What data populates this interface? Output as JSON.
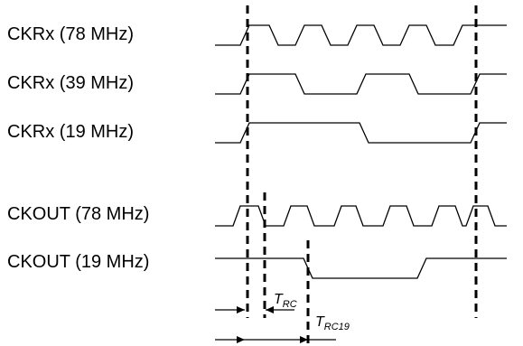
{
  "signals": [
    {
      "label": "CKRx (78 MHz)"
    },
    {
      "label": "CKRx (39 MHz)"
    },
    {
      "label": "CKRx (19 MHz)"
    },
    {
      "label": "CKOUT (78 MHz)"
    },
    {
      "label": "CKOUT (19 MHz)"
    }
  ],
  "annotations": {
    "trc": {
      "main": "T",
      "sub": "RC"
    },
    "trc19": {
      "main": "T",
      "sub": "RC19"
    }
  },
  "colors": {
    "line": "#000000",
    "background": "#ffffff"
  }
}
